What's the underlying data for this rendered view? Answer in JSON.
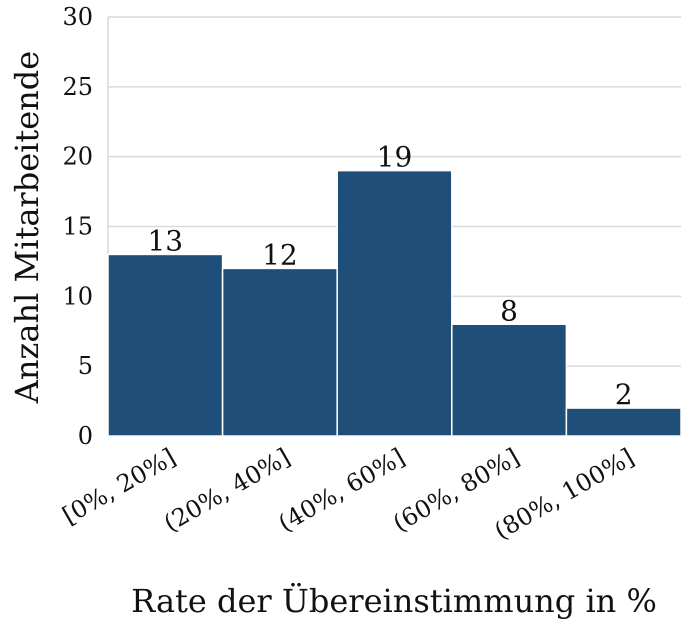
{
  "chart_data": {
    "type": "bar",
    "categories": [
      "[0%, 20%]",
      "(20%, 40%]",
      "(40%, 60%]",
      "(60%, 80%]",
      "(80%, 100%]"
    ],
    "values": [
      13,
      12,
      19,
      8,
      2
    ],
    "data_labels": [
      "13",
      "12",
      "19",
      "8",
      "2"
    ],
    "xlabel": "Rate der Übereinstimmung in %",
    "ylabel": "Anzahl Mitarbeitende",
    "ylim": [
      0,
      30
    ],
    "yticks": [
      0,
      5,
      10,
      15,
      20,
      25,
      30
    ],
    "grid": "horizontal",
    "bar_color": "#1f4e79",
    "legend": "none"
  }
}
